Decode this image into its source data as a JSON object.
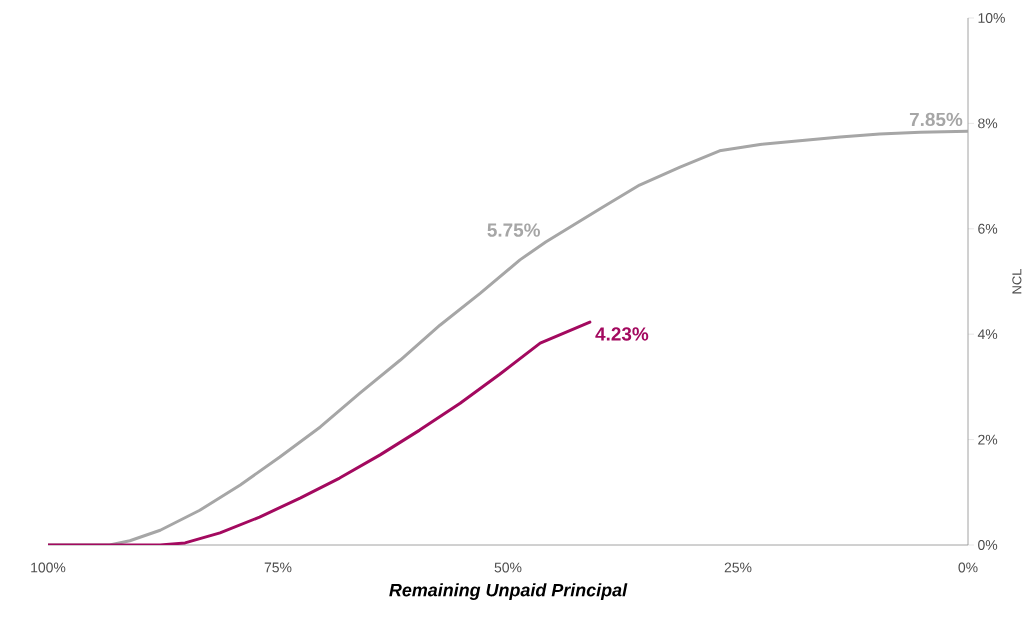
{
  "chart_data": {
    "type": "line",
    "xlabel": "**Remaining Unpaid Principal**",
    "ylabel": "NCL",
    "x": [
      100,
      93.3,
      91.1,
      87.8,
      83.5,
      79.1,
      74.8,
      70.4,
      66.1,
      61.7,
      57.4,
      53.0,
      48.7,
      45.9,
      39.9,
      35.7,
      31.3,
      27.0,
      22.6,
      18.3,
      13.9,
      9.6,
      5.2,
      0
    ],
    "series": [
      {
        "color": "#a6a6a6",
        "values": [
          0,
          0,
          0.08,
          0.28,
          0.66,
          1.14,
          1.67,
          2.24,
          2.88,
          3.51,
          4.17,
          4.78,
          5.41,
          5.75,
          6.39,
          6.83,
          7.17,
          7.48,
          7.6,
          7.67,
          7.74,
          7.8,
          7.83,
          7.85
        ],
        "value_labels": [
          null,
          null,
          null,
          null,
          null,
          null,
          null,
          null,
          null,
          null,
          null,
          null,
          null,
          "5.75%",
          null,
          null,
          null,
          null,
          null,
          null,
          null,
          null,
          null,
          "7.85%"
        ]
      },
      {
        "color": "#a3095f",
        "x": [
          100,
          87.8,
          85.1,
          81.3,
          77.0,
          72.6,
          68.3,
          63.9,
          59.6,
          55.2,
          50.9,
          46.5,
          41.1
        ],
        "values": [
          0,
          0,
          0.04,
          0.23,
          0.53,
          0.89,
          1.27,
          1.71,
          2.18,
          2.69,
          3.24,
          3.83,
          4.23
        ],
        "value_labels": [
          null,
          null,
          null,
          null,
          null,
          null,
          null,
          null,
          null,
          null,
          null,
          null,
          "4.23%"
        ]
      }
    ],
    "xlim": [
      100,
      0
    ],
    "ylim": [
      0,
      10
    ],
    "xticks": [
      {
        "value": 100,
        "label": "100%"
      },
      {
        "value": 75,
        "label": "75%"
      },
      {
        "value": 50,
        "label": "50%"
      },
      {
        "value": 25,
        "label": "25%"
      },
      {
        "value": 0,
        "label": "0%"
      }
    ],
    "yticks": [
      {
        "value": 0,
        "label": "0%"
      },
      {
        "value": 2,
        "label": "2%"
      },
      {
        "value": 4,
        "label": "4%"
      },
      {
        "value": 6,
        "label": "6%"
      },
      {
        "value": 8,
        "label": "8%"
      },
      {
        "value": 10,
        "label": "10%"
      }
    ],
    "grid": false,
    "marker": "none",
    "line_style": "solid"
  }
}
